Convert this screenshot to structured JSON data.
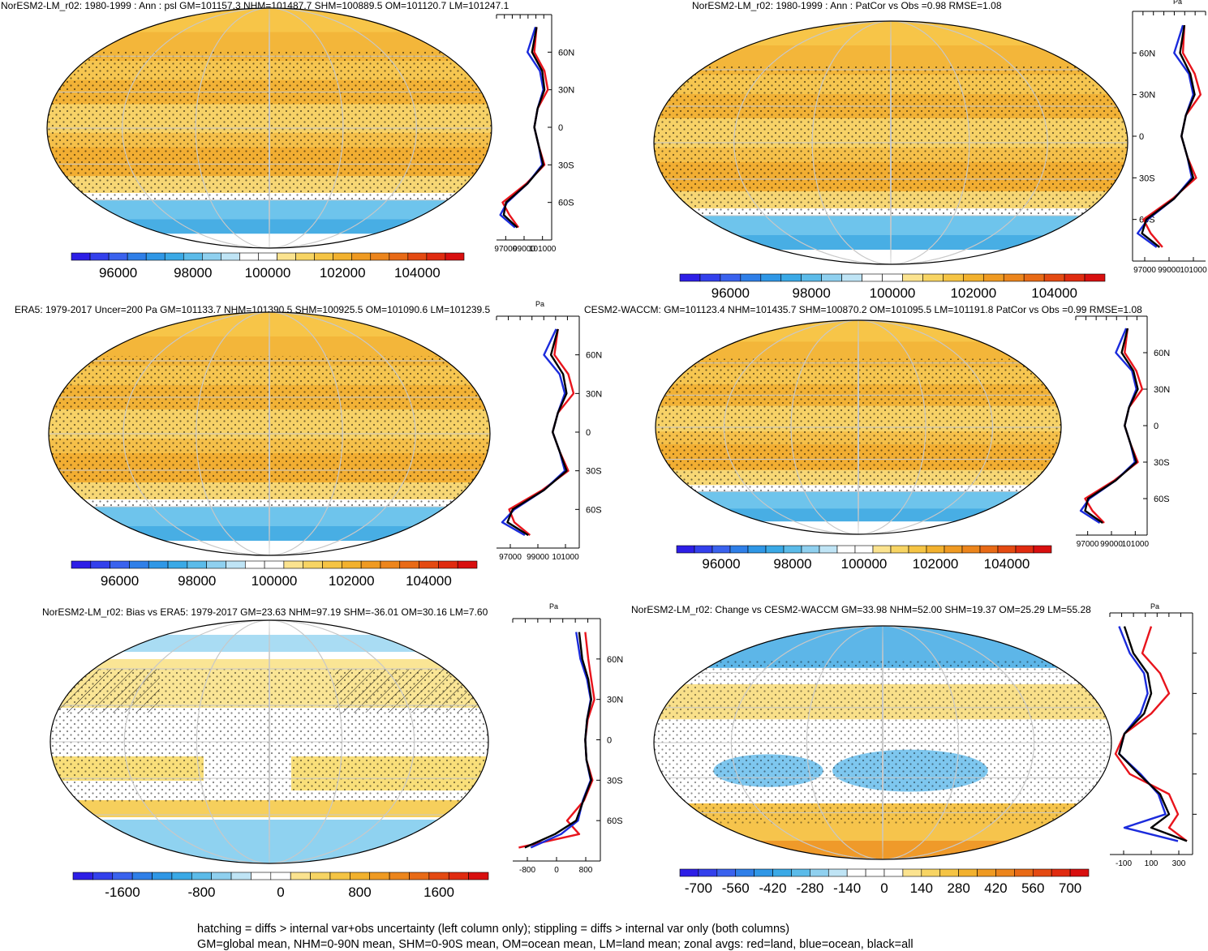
{
  "panels": [
    {
      "id": "p1",
      "title": "NorESM2-LM_r02: 1980-1999 : Ann : psl GM=101157.3 NHM=101487.7 SHM=100889.5 OM=101120.7 LM=101247.1",
      "unit": "",
      "colorbar_ticks": [
        "96000",
        "98000",
        "100000",
        "102000",
        "104000"
      ],
      "zonal_lat_ticks": [
        "60N",
        "30N",
        "0",
        "30S",
        "60S"
      ],
      "zonal_x_ticks": [
        "97000",
        "99000",
        "101000"
      ]
    },
    {
      "id": "p2",
      "title": "NorESM2-LM_r02: 1980-1999 : Ann : PatCor vs Obs =0.98 RMSE=1.08",
      "unit": "Pa",
      "colorbar_ticks": [
        "96000",
        "98000",
        "100000",
        "102000",
        "104000"
      ],
      "zonal_lat_ticks": [
        "60N",
        "30N",
        "0",
        "30S",
        "60S"
      ],
      "zonal_x_ticks": [
        "97000",
        "99000",
        "101000"
      ]
    },
    {
      "id": "p3",
      "title": "ERA5: 1979-2017 Uncer=200 Pa GM=101133.7 NHM=101390.5 SHM=100925.5 OM=101090.6 LM=101239.5",
      "unit": "Pa",
      "colorbar_ticks": [
        "96000",
        "98000",
        "100000",
        "102000",
        "104000"
      ],
      "zonal_lat_ticks": [
        "60N",
        "30N",
        "0",
        "30S",
        "60S"
      ],
      "zonal_x_ticks": [
        "97000",
        "99000",
        "101000"
      ]
    },
    {
      "id": "p4",
      "title": "CESM2-WACCM: GM=101123.4 NHM=101435.7 SHM=100870.2 OM=101095.5 LM=101191.8 PatCor vs Obs =0.99 RMSE=1.08",
      "unit": "",
      "colorbar_ticks": [
        "96000",
        "98000",
        "100000",
        "102000",
        "104000"
      ],
      "zonal_lat_ticks": [
        "60N",
        "30N",
        "0",
        "30S",
        "60S"
      ],
      "zonal_x_ticks": [
        "97000",
        "99000",
        "101000"
      ]
    },
    {
      "id": "p5",
      "title": "NorESM2-LM_r02: Bias vs ERA5: 1979-2017 GM=23.63 NHM=97.19 SHM=-36.01 OM=30.16 LM=7.60",
      "unit": "Pa",
      "colorbar_ticks": [
        "-1600",
        "-800",
        "0",
        "800",
        "1600"
      ],
      "zonal_lat_ticks": [
        "60N",
        "30N",
        "0",
        "30S",
        "60S"
      ],
      "zonal_x_ticks": [
        "-800",
        "0",
        "800"
      ]
    },
    {
      "id": "p6",
      "title": "NorESM2-LM_r02: Change vs CESM2-WACCM GM=33.98 NHM=52.00 SHM=19.37 OM=25.29 LM=55.28",
      "unit": "Pa",
      "colorbar_ticks": [
        "-700",
        "-560",
        "-420",
        "-280",
        "-140",
        "0",
        "140",
        "280",
        "420",
        "560",
        "700"
      ],
      "zonal_lat_ticks": [],
      "zonal_x_ticks": [
        "-100",
        "100",
        "300"
      ]
    }
  ],
  "footer": {
    "line1": "hatching = diffs > internal var+obs uncertainty (left column only); stippling = diffs > internal var only (both columns)",
    "line2": "GM=global mean, NHM=0-90N mean, SHM=0-90S mean, OM=ocean mean, LM=land mean; zonal avgs: red=land, blue=ocean, black=all"
  },
  "chart_data": [
    {
      "type": "heatmap",
      "panel": "p1",
      "title": "NorESM2-LM_r02: 1980-1999 : Ann : psl GM=101157.3 NHM=101487.7 SHM=100889.5 OM=101120.7 LM=101247.1",
      "colorbar_range": [
        95000,
        105000
      ],
      "zonal_mean": {
        "lat": [
          80,
          60,
          45,
          30,
          15,
          0,
          -15,
          -30,
          -45,
          -60,
          -70,
          -80
        ],
        "all": [
          101200,
          100800,
          101700,
          101900,
          101300,
          101000,
          101400,
          101800,
          100400,
          98500,
          98300,
          99500
        ],
        "land": [
          101200,
          101000,
          101900,
          102200,
          101300,
          101000,
          101400,
          101900,
          100300,
          98200,
          98800,
          99600
        ],
        "ocean": [
          101100,
          100400,
          101500,
          101800,
          101300,
          101000,
          101400,
          101700,
          100400,
          98600,
          98000,
          99300
        ]
      }
    },
    {
      "type": "heatmap",
      "panel": "p2",
      "title": "NorESM2-LM_r02: 1980-1999 : Ann : PatCor vs Obs =0.98 RMSE=1.08",
      "colorbar_range": [
        95000,
        105000
      ],
      "zonal_mean": {
        "lat": [
          80,
          60,
          45,
          30,
          15,
          0,
          -15,
          -30,
          -45,
          -60,
          -70,
          -80
        ],
        "all": [
          101200,
          100900,
          101600,
          101900,
          101300,
          101000,
          101400,
          101800,
          100500,
          98600,
          98300,
          99500
        ],
        "land": [
          101200,
          101100,
          101900,
          102300,
          101300,
          101000,
          101400,
          102000,
          100400,
          98400,
          98900,
          99700
        ],
        "ocean": [
          101100,
          100500,
          101500,
          101800,
          101300,
          101000,
          101400,
          101700,
          100500,
          98700,
          98000,
          99300
        ]
      }
    },
    {
      "type": "heatmap",
      "panel": "p3",
      "title": "ERA5: 1979-2017 Uncer=200 Pa GM=101133.7 NHM=101390.5 SHM=100925.5 OM=101090.6 LM=101239.5",
      "colorbar_range": [
        95000,
        105000
      ],
      "zonal_mean": {
        "lat": [
          80,
          60,
          45,
          30,
          15,
          0,
          -15,
          -30,
          -45,
          -60,
          -70,
          -80
        ],
        "all": [
          101300,
          100900,
          101600,
          101800,
          101300,
          101000,
          101400,
          101800,
          100500,
          98700,
          98400,
          99600
        ],
        "land": [
          101300,
          101100,
          101900,
          102200,
          101300,
          101000,
          101400,
          101900,
          100400,
          98500,
          98800,
          99700
        ],
        "ocean": [
          101200,
          100500,
          101400,
          101700,
          101300,
          101000,
          101400,
          101700,
          100500,
          98800,
          98100,
          99400
        ]
      }
    },
    {
      "type": "heatmap",
      "panel": "p4",
      "title": "CESM2-WACCM: GM=101123.4 NHM=101435.7 SHM=100870.2 OM=101095.5 LM=101191.8 PatCor vs Obs =0.99 RMSE=1.08",
      "colorbar_range": [
        95000,
        105000
      ],
      "zonal_mean": {
        "lat": [
          80,
          60,
          45,
          30,
          15,
          0,
          -15,
          -30,
          -45,
          -60,
          -70,
          -80
        ],
        "all": [
          101200,
          100800,
          101600,
          101900,
          101300,
          101000,
          101400,
          101800,
          100400,
          98500,
          98300,
          99500
        ],
        "land": [
          101200,
          101000,
          101800,
          102200,
          101300,
          101000,
          101400,
          101900,
          100300,
          98300,
          98800,
          99600
        ],
        "ocean": [
          101100,
          100400,
          101500,
          101800,
          101300,
          101000,
          101400,
          101700,
          100400,
          98600,
          98000,
          99300
        ]
      }
    },
    {
      "type": "heatmap",
      "panel": "p5",
      "title": "NorESM2-LM_r02: Bias vs ERA5: 1979-2017 GM=23.63 NHM=97.19 SHM=-36.01 OM=30.16 LM=7.60",
      "colorbar_range": [
        -2000,
        2000
      ],
      "zonal_mean": {
        "lat": [
          80,
          60,
          45,
          30,
          15,
          0,
          -15,
          -30,
          -45,
          -60,
          -70,
          -80
        ],
        "all": [
          -100,
          -50,
          50,
          100,
          30,
          0,
          20,
          100,
          -30,
          -150,
          -500,
          -1000
        ],
        "land": [
          0,
          50,
          100,
          150,
          40,
          0,
          20,
          120,
          -20,
          -300,
          -100,
          -1100
        ],
        "ocean": [
          -150,
          -80,
          30,
          90,
          30,
          0,
          20,
          90,
          -40,
          -120,
          -400,
          -900
        ]
      }
    },
    {
      "type": "heatmap",
      "panel": "p6",
      "title": "NorESM2-LM_r02: Change vs CESM2-WACCM GM=33.98 NHM=52.00 SHM=19.37 OM=25.29 LM=55.28",
      "colorbar_range": [
        -770,
        770
      ],
      "zonal_mean": {
        "lat": [
          80,
          60,
          45,
          30,
          15,
          0,
          -15,
          -30,
          -45,
          -60,
          -70,
          -80
        ],
        "all": [
          -50,
          0,
          80,
          100,
          60,
          -50,
          -80,
          30,
          150,
          200,
          100,
          300
        ],
        "land": [
          100,
          50,
          150,
          200,
          100,
          -50,
          -100,
          -20,
          200,
          250,
          200,
          300
        ],
        "ocean": [
          -80,
          -20,
          60,
          80,
          40,
          -50,
          -80,
          40,
          140,
          180,
          -50,
          250
        ]
      }
    }
  ]
}
